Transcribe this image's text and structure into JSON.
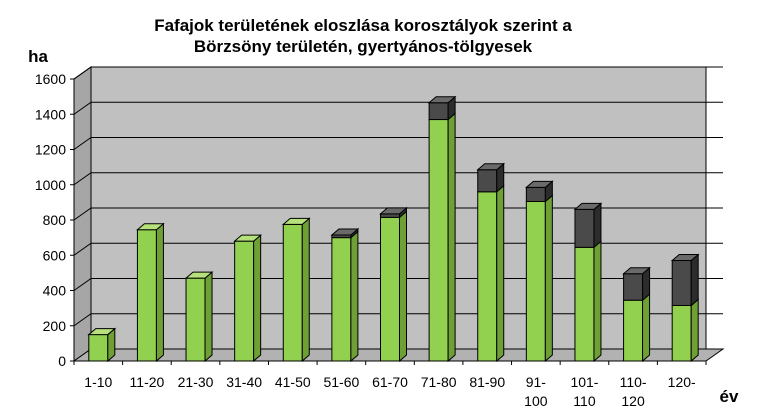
{
  "chart_data": {
    "type": "bar",
    "stacked": true,
    "three_d": true,
    "title_lines": [
      "Fafajok területének eloszlása korosztályok szerint a",
      "Börzsöny területén, gyertyános-tölgyesek"
    ],
    "ylabel": "ha",
    "xlabel": "év",
    "ylim": [
      0,
      1600
    ],
    "yticks": [
      "0",
      "200",
      "400",
      "600",
      "800",
      "1000",
      "1200",
      "1400",
      "1600"
    ],
    "grid": true,
    "legend": "none",
    "categories": [
      [
        "1-10"
      ],
      [
        "11-20"
      ],
      [
        "21-30"
      ],
      [
        "31-40"
      ],
      [
        "41-50"
      ],
      [
        "51-60"
      ],
      [
        "61-70"
      ],
      [
        "71-80"
      ],
      [
        "81-90"
      ],
      [
        "91-",
        "100"
      ],
      [
        "101-",
        "110"
      ],
      [
        "110-",
        "120"
      ],
      [
        "120-"
      ]
    ],
    "series": [
      {
        "values": [
          150,
          745,
          470,
          680,
          775,
          700,
          815,
          1370,
          960,
          905,
          645,
          345,
          315
        ],
        "color": "#92d050"
      },
      {
        "values": [
          0,
          0,
          0,
          0,
          0,
          15,
          20,
          95,
          125,
          80,
          215,
          150,
          255
        ],
        "color": "#4a4a4a"
      }
    ],
    "colors": {
      "wall": "#c0c0c0",
      "floor": "#b2b2b2",
      "grid": "#000000"
    }
  }
}
